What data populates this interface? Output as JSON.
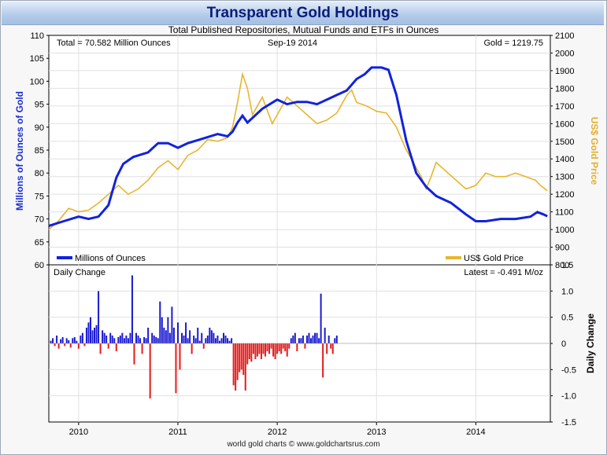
{
  "header": {
    "title": "Transparent Gold Holdings",
    "subtitle": "Total Published Repositories, Mutual Funds and ETFs in Ounces",
    "footer": "world gold charts © www.goldchartsrus.com"
  },
  "info": {
    "total": "Total = 70.582 Million Ounces",
    "date": "Sep-19  2014",
    "gold": "Gold = 1219.75",
    "daily_change_label": "Daily Change",
    "latest": "Latest = -0.491 M/oz"
  },
  "legend": {
    "holdings": "Millions of Ounces",
    "price": "US$ Gold Price"
  },
  "colors": {
    "holdings": "#1122dd",
    "price": "#e8b52e",
    "positive": "#1a1ad4",
    "negative": "#e61a1a",
    "zero_label": "#dd00dd"
  },
  "chart_data": [
    {
      "type": "line",
      "title": "Transparent Gold Holdings",
      "ylabel_left": "Millions of Ounces of Gold",
      "ylabel_right": "US$ Gold Price",
      "x_tick_labels": [
        "2010",
        "2011",
        "2012",
        "2013",
        "2014"
      ],
      "xlim": [
        2009.7,
        2014.75
      ],
      "ylim_left": [
        60,
        110
      ],
      "ylim_right": [
        800,
        2100
      ],
      "y_ticks_left": [
        "60",
        "65",
        "70",
        "75",
        "80",
        "85",
        "90",
        "95",
        "100",
        "105",
        "110"
      ],
      "y_ticks_right": [
        "800",
        "900",
        "1000",
        "1100",
        "1200",
        "1300",
        "1400",
        "1500",
        "1600",
        "1700",
        "1800",
        "1900",
        "2000",
        "2100"
      ],
      "legend_position": "bottom",
      "series": [
        {
          "name": "Millions of Ounces",
          "axis": "left",
          "x": [
            2009.7,
            2009.85,
            2010.0,
            2010.1,
            2010.2,
            2010.3,
            2010.38,
            2010.45,
            2010.55,
            2010.7,
            2010.8,
            2010.9,
            2011.0,
            2011.1,
            2011.25,
            2011.4,
            2011.5,
            2011.55,
            2011.6,
            2011.65,
            2011.7,
            2011.75,
            2011.85,
            2012.0,
            2012.1,
            2012.2,
            2012.3,
            2012.4,
            2012.5,
            2012.6,
            2012.7,
            2012.8,
            2012.88,
            2012.95,
            2013.05,
            2013.12,
            2013.2,
            2013.3,
            2013.4,
            2013.5,
            2013.6,
            2013.75,
            2013.9,
            2014.0,
            2014.1,
            2014.25,
            2014.4,
            2014.55,
            2014.62,
            2014.68,
            2014.72
          ],
          "values": [
            68.5,
            69.5,
            70.5,
            70.0,
            70.5,
            73.0,
            79.0,
            82.0,
            83.5,
            84.5,
            86.5,
            86.5,
            85.5,
            86.5,
            87.5,
            88.5,
            88.0,
            89.0,
            91.0,
            92.5,
            91.0,
            92.0,
            94.0,
            96.0,
            95.0,
            95.5,
            95.5,
            95.0,
            96.0,
            97.0,
            98.0,
            100.5,
            101.5,
            103.0,
            103.0,
            102.5,
            97.0,
            87.0,
            80.0,
            77.0,
            75.0,
            73.5,
            71.0,
            69.5,
            69.5,
            70.0,
            70.0,
            70.5,
            71.5,
            71.0,
            70.6
          ]
        },
        {
          "name": "US$ Gold Price",
          "axis": "right",
          "x": [
            2009.7,
            2009.8,
            2009.9,
            2010.0,
            2010.1,
            2010.2,
            2010.3,
            2010.4,
            2010.5,
            2010.6,
            2010.7,
            2010.8,
            2010.9,
            2011.0,
            2011.1,
            2011.2,
            2011.3,
            2011.4,
            2011.5,
            2011.55,
            2011.6,
            2011.65,
            2011.7,
            2011.75,
            2011.8,
            2011.85,
            2011.95,
            2012.0,
            2012.1,
            2012.2,
            2012.3,
            2012.4,
            2012.5,
            2012.6,
            2012.7,
            2012.75,
            2012.8,
            2012.9,
            2013.0,
            2013.1,
            2013.2,
            2013.3,
            2013.35,
            2013.45,
            2013.5,
            2013.55,
            2013.6,
            2013.7,
            2013.8,
            2013.9,
            2014.0,
            2014.1,
            2014.2,
            2014.3,
            2014.4,
            2014.5,
            2014.6,
            2014.65,
            2014.72
          ],
          "values": [
            1000,
            1050,
            1120,
            1100,
            1110,
            1150,
            1200,
            1250,
            1200,
            1230,
            1280,
            1350,
            1390,
            1340,
            1420,
            1450,
            1510,
            1500,
            1520,
            1580,
            1720,
            1880,
            1800,
            1650,
            1700,
            1750,
            1600,
            1650,
            1750,
            1700,
            1650,
            1600,
            1620,
            1660,
            1760,
            1790,
            1720,
            1700,
            1670,
            1660,
            1580,
            1450,
            1400,
            1300,
            1230,
            1300,
            1380,
            1330,
            1280,
            1230,
            1250,
            1320,
            1300,
            1300,
            1320,
            1300,
            1280,
            1250,
            1220
          ]
        }
      ]
    },
    {
      "type": "bar",
      "title": "Daily Change",
      "ylabel": "Daily Change",
      "ylim": [
        -1.5,
        1.5
      ],
      "y_ticks": [
        "-1.5",
        "-1.0",
        "-0.5",
        "0",
        "0.5",
        "1.0",
        "1.5"
      ],
      "xlim": [
        2009.7,
        2014.75
      ],
      "sampling": "approximately weekly bars estimated from a dense daily series",
      "x_start": 2009.72,
      "x_step": 0.02,
      "values": [
        0.05,
        0.1,
        -0.05,
        0.15,
        -0.1,
        0.08,
        0.12,
        -0.05,
        0.1,
        0.06,
        -0.08,
        0.1,
        0.12,
        0.05,
        -0.1,
        0.15,
        0.2,
        -0.05,
        0.3,
        0.4,
        0.5,
        0.25,
        0.3,
        0.35,
        1.0,
        -0.2,
        0.25,
        0.2,
        0.15,
        -0.1,
        0.2,
        0.15,
        0.1,
        -0.15,
        0.12,
        0.15,
        0.2,
        0.1,
        0.15,
        0.1,
        0.2,
        1.3,
        -0.4,
        0.2,
        0.15,
        0.1,
        -0.2,
        0.12,
        0.1,
        0.3,
        -1.05,
        0.2,
        0.15,
        0.12,
        0.1,
        0.8,
        0.5,
        0.3,
        0.25,
        0.5,
        0.2,
        0.7,
        0.3,
        -0.95,
        0.4,
        -0.5,
        0.2,
        0.15,
        0.4,
        0.1,
        0.25,
        -0.2,
        0.15,
        0.1,
        0.3,
        0.05,
        0.2,
        -0.1,
        0.1,
        0.15,
        0.3,
        0.25,
        0.2,
        0.1,
        0.15,
        0.05,
        0.1,
        0.2,
        0.15,
        0.1,
        0.05,
        0.1,
        -0.8,
        -0.9,
        -0.7,
        -0.55,
        -0.5,
        -0.6,
        -0.9,
        -0.4,
        -0.3,
        -0.35,
        -0.2,
        -0.3,
        -0.25,
        -0.2,
        -0.3,
        -0.2,
        -0.25,
        -0.15,
        -0.2,
        -0.1,
        -0.25,
        -0.3,
        -0.2,
        -0.15,
        -0.2,
        -0.1,
        -0.15,
        -0.25,
        -0.1,
        0.1,
        0.15,
        0.2,
        -0.15,
        0.1,
        0.1,
        0.15,
        -0.1,
        0.15,
        0.2,
        0.1,
        0.15,
        0.2,
        0.2,
        0.1,
        0.95,
        -0.65,
        0.3,
        -0.2,
        0.15,
        -0.1,
        -0.2,
        0.1,
        0.15
      ]
    }
  ]
}
